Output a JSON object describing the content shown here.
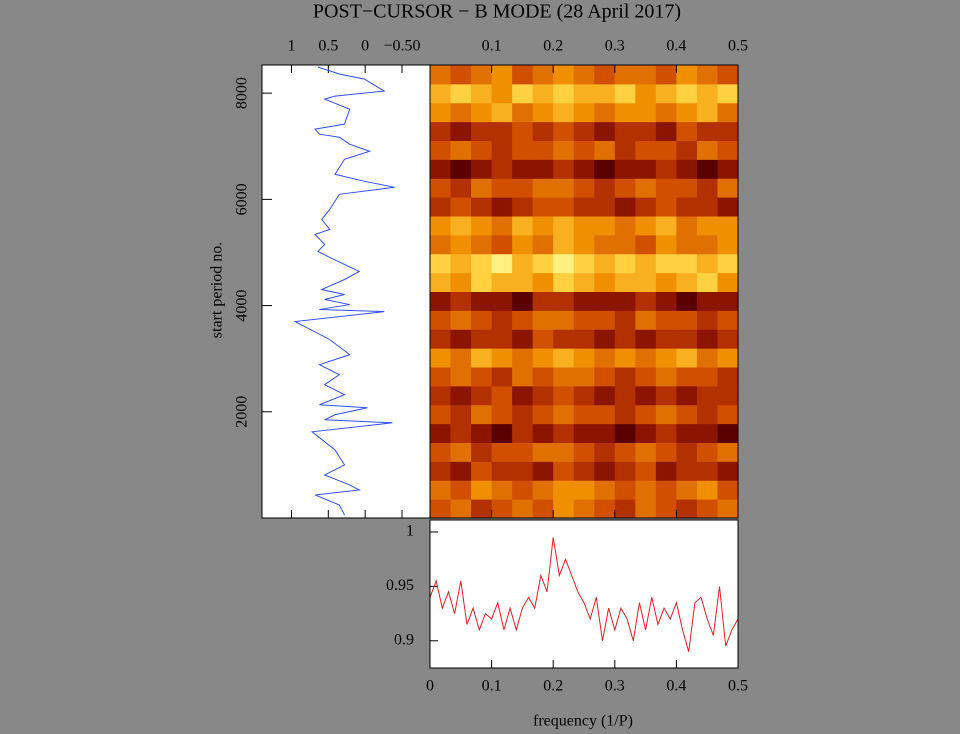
{
  "chart_data": [
    {
      "type": "line",
      "orientation": "vertical",
      "ylabel": "start period no.",
      "color": "#3050ff",
      "y": [
        8490,
        8360,
        8265,
        8040,
        7944,
        7888,
        7699,
        7416,
        7322,
        7227,
        7170,
        7039,
        6906,
        6755,
        6472,
        6340,
        6227,
        6095,
        5812,
        5623,
        5435,
        5340,
        5152,
        5019,
        4906,
        4774,
        4642,
        4491,
        4302,
        4208,
        4114,
        4019,
        3925,
        3887,
        3699,
        3359,
        3076,
        2887,
        2698,
        2510,
        2321,
        2132,
        2076,
        1944,
        1849,
        1793,
        1623,
        1283,
        1000,
        811,
        623,
        528,
        434,
        245,
        57
      ],
      "values": [
        0.64,
        0.35,
        0.01,
        -0.26,
        0.41,
        0.55,
        0.21,
        0.28,
        0.68,
        0.62,
        0.35,
        0.21,
        -0.06,
        0.28,
        0.41,
        0.01,
        -0.4,
        0.35,
        0.48,
        0.59,
        0.48,
        0.68,
        0.55,
        0.64,
        0.48,
        0.28,
        0.08,
        0.28,
        0.59,
        0.28,
        0.55,
        0.21,
        0.62,
        -0.26,
        0.95,
        0.48,
        0.21,
        0.62,
        0.35,
        0.55,
        0.28,
        0.62,
        -0.03,
        0.41,
        0.55,
        -0.37,
        0.72,
        0.41,
        0.28,
        0.55,
        0.21,
        0.08,
        0.68,
        0.35,
        0.28
      ],
      "xlim": [
        1.4,
        -0.88
      ],
      "xticks": [
        1,
        0.5,
        0,
        {
          "value": -0.5,
          "label": "−0.50"
        }
      ],
      "ylim": [
        0,
        8530
      ],
      "yticks": [
        2000,
        4000,
        6000,
        8000
      ]
    },
    {
      "type": "heatmap",
      "title": "POST−CURSOR − B MODE (28 April 2017)",
      "xlim": [
        0,
        0.5
      ],
      "xticks": [
        0.1,
        0.2,
        0.3,
        0.4,
        0.5
      ],
      "ylim": [
        0,
        8530
      ],
      "colormap": [
        "#1a0000",
        "#5a0000",
        "#8b1500",
        "#b33000",
        "#d05000",
        "#e07000",
        "#f09000",
        "#f8b020",
        "#ffd040",
        "#fff080"
      ],
      "z": [
        [
          4,
          5,
          3,
          4,
          5,
          4,
          6,
          5,
          4,
          3,
          5,
          4,
          3,
          4,
          5
        ],
        [
          5,
          4,
          6,
          5,
          4,
          5,
          6,
          6,
          5,
          4,
          5,
          4,
          5,
          6,
          4
        ],
        [
          3,
          2,
          4,
          3,
          3,
          2,
          4,
          3,
          2,
          3,
          4,
          2,
          3,
          3,
          2
        ],
        [
          4,
          5,
          3,
          4,
          4,
          5,
          5,
          4,
          3,
          4,
          5,
          4,
          3,
          4,
          5
        ],
        [
          2,
          3,
          2,
          1,
          3,
          2,
          3,
          2,
          2,
          1,
          2,
          3,
          2,
          2,
          1
        ],
        [
          4,
          3,
          5,
          4,
          3,
          4,
          5,
          4,
          4,
          3,
          4,
          5,
          4,
          3,
          4
        ],
        [
          3,
          2,
          3,
          4,
          2,
          3,
          4,
          3,
          2,
          3,
          2,
          3,
          2,
          3,
          3
        ],
        [
          4,
          5,
          4,
          3,
          5,
          4,
          5,
          5,
          4,
          3,
          4,
          5,
          4,
          4,
          3
        ],
        [
          6,
          5,
          7,
          6,
          5,
          6,
          7,
          6,
          5,
          6,
          5,
          6,
          7,
          5,
          6
        ],
        [
          3,
          2,
          3,
          3,
          2,
          4,
          3,
          3,
          2,
          3,
          2,
          3,
          3,
          2,
          3
        ],
        [
          4,
          5,
          4,
          3,
          4,
          5,
          5,
          4,
          4,
          3,
          5,
          4,
          4,
          3,
          4
        ],
        [
          2,
          3,
          2,
          2,
          1,
          3,
          3,
          2,
          2,
          2,
          3,
          2,
          1,
          2,
          2
        ],
        [
          7,
          6,
          8,
          7,
          7,
          6,
          8,
          7,
          6,
          7,
          7,
          6,
          7,
          8,
          6
        ],
        [
          8,
          7,
          8,
          9,
          7,
          8,
          9,
          8,
          7,
          8,
          7,
          8,
          8,
          7,
          8
        ],
        [
          5,
          6,
          5,
          4,
          6,
          5,
          7,
          6,
          5,
          5,
          4,
          6,
          5,
          5,
          6
        ],
        [
          6,
          7,
          6,
          5,
          7,
          6,
          7,
          6,
          6,
          5,
          6,
          7,
          5,
          6,
          6
        ],
        [
          3,
          4,
          3,
          2,
          3,
          4,
          4,
          3,
          3,
          2,
          3,
          4,
          3,
          3,
          2
        ],
        [
          4,
          3,
          5,
          4,
          4,
          5,
          5,
          4,
          3,
          4,
          5,
          4,
          4,
          3,
          5
        ],
        [
          2,
          1,
          2,
          3,
          2,
          2,
          3,
          2,
          1,
          2,
          2,
          3,
          2,
          1,
          2
        ],
        [
          4,
          5,
          4,
          3,
          4,
          4,
          5,
          4,
          5,
          3,
          4,
          4,
          3,
          5,
          4
        ],
        [
          3,
          2,
          3,
          3,
          4,
          3,
          4,
          3,
          2,
          3,
          3,
          2,
          4,
          3,
          3
        ],
        [
          6,
          5,
          6,
          7,
          5,
          6,
          7,
          6,
          5,
          6,
          6,
          5,
          6,
          7,
          5
        ],
        [
          7,
          8,
          7,
          6,
          8,
          7,
          8,
          7,
          7,
          8,
          6,
          7,
          8,
          7,
          8
        ],
        [
          5,
          4,
          5,
          6,
          4,
          5,
          6,
          5,
          4,
          5,
          5,
          4,
          6,
          5,
          4
        ]
      ]
    },
    {
      "type": "line",
      "xlabel": "frequency (1/P)",
      "color": "#e02020",
      "x": [
        0,
        0.01,
        0.02,
        0.03,
        0.04,
        0.05,
        0.06,
        0.07,
        0.08,
        0.09,
        0.1,
        0.11,
        0.12,
        0.13,
        0.14,
        0.15,
        0.16,
        0.17,
        0.18,
        0.19,
        0.2,
        0.21,
        0.22,
        0.23,
        0.24,
        0.25,
        0.26,
        0.27,
        0.28,
        0.29,
        0.3,
        0.31,
        0.32,
        0.33,
        0.34,
        0.35,
        0.36,
        0.37,
        0.38,
        0.39,
        0.4,
        0.41,
        0.42,
        0.43,
        0.44,
        0.45,
        0.46,
        0.47,
        0.48,
        0.49,
        0.5
      ],
      "values": [
        0.94,
        0.955,
        0.93,
        0.945,
        0.925,
        0.955,
        0.915,
        0.93,
        0.91,
        0.925,
        0.92,
        0.935,
        0.91,
        0.93,
        0.91,
        0.93,
        0.94,
        0.93,
        0.96,
        0.945,
        0.995,
        0.96,
        0.975,
        0.96,
        0.945,
        0.935,
        0.92,
        0.94,
        0.9,
        0.93,
        0.91,
        0.93,
        0.92,
        0.9,
        0.935,
        0.91,
        0.94,
        0.915,
        0.93,
        0.92,
        0.935,
        0.91,
        0.89,
        0.935,
        0.94,
        0.92,
        0.905,
        0.95,
        0.895,
        0.91,
        0.92
      ],
      "xlim": [
        0,
        0.5
      ],
      "xticks": [
        0,
        0.1,
        0.2,
        0.3,
        0.4,
        0.5
      ],
      "ylim": [
        0.875,
        1.011
      ],
      "yticks": [
        0.9,
        0.95,
        1
      ]
    }
  ]
}
